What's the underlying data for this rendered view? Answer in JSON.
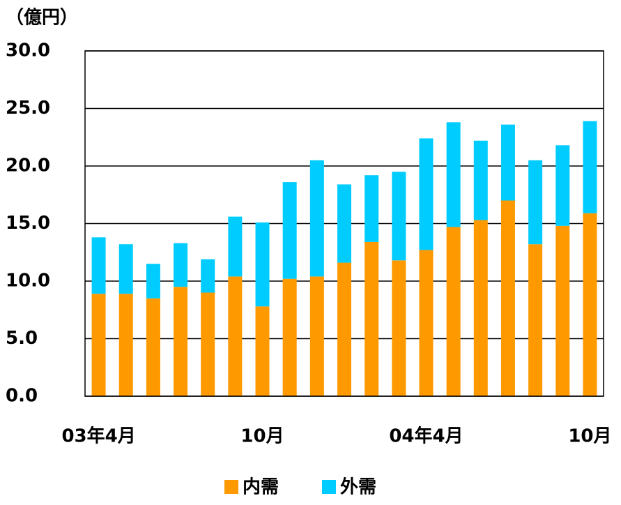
{
  "chart_data": {
    "type": "stacked_bar",
    "y_label": "（億円）",
    "categories": [
      "03年4月",
      null,
      null,
      null,
      null,
      null,
      "10月",
      null,
      null,
      null,
      null,
      null,
      "04年4月",
      null,
      null,
      null,
      null,
      null,
      "10月"
    ],
    "series": [
      {
        "name": "内需",
        "color": "#FF9900",
        "values": [
          8.9,
          8.9,
          8.5,
          9.5,
          9.0,
          10.4,
          7.8,
          10.2,
          10.4,
          11.6,
          13.4,
          11.8,
          12.7,
          14.7,
          15.3,
          17.0,
          13.2,
          14.8,
          15.9
        ]
      },
      {
        "name": "外需",
        "color": "#00CCFF",
        "values": [
          4.9,
          4.3,
          3.0,
          3.8,
          2.9,
          5.2,
          7.3,
          8.4,
          10.1,
          6.8,
          5.8,
          7.7,
          9.7,
          9.1,
          6.9,
          6.6,
          7.3,
          7.0,
          8.0
        ]
      }
    ],
    "ylim": [
      0,
      30
    ],
    "yticks": [
      {
        "value": 0,
        "label": "0.0"
      },
      {
        "value": 5,
        "label": "5.0"
      },
      {
        "value": 10,
        "label": "10.0"
      },
      {
        "value": 15,
        "label": "15.0"
      },
      {
        "value": 20,
        "label": "20.0"
      },
      {
        "value": 25,
        "label": "25.0"
      },
      {
        "value": 30,
        "label": "30.0"
      }
    ],
    "grid": true
  }
}
